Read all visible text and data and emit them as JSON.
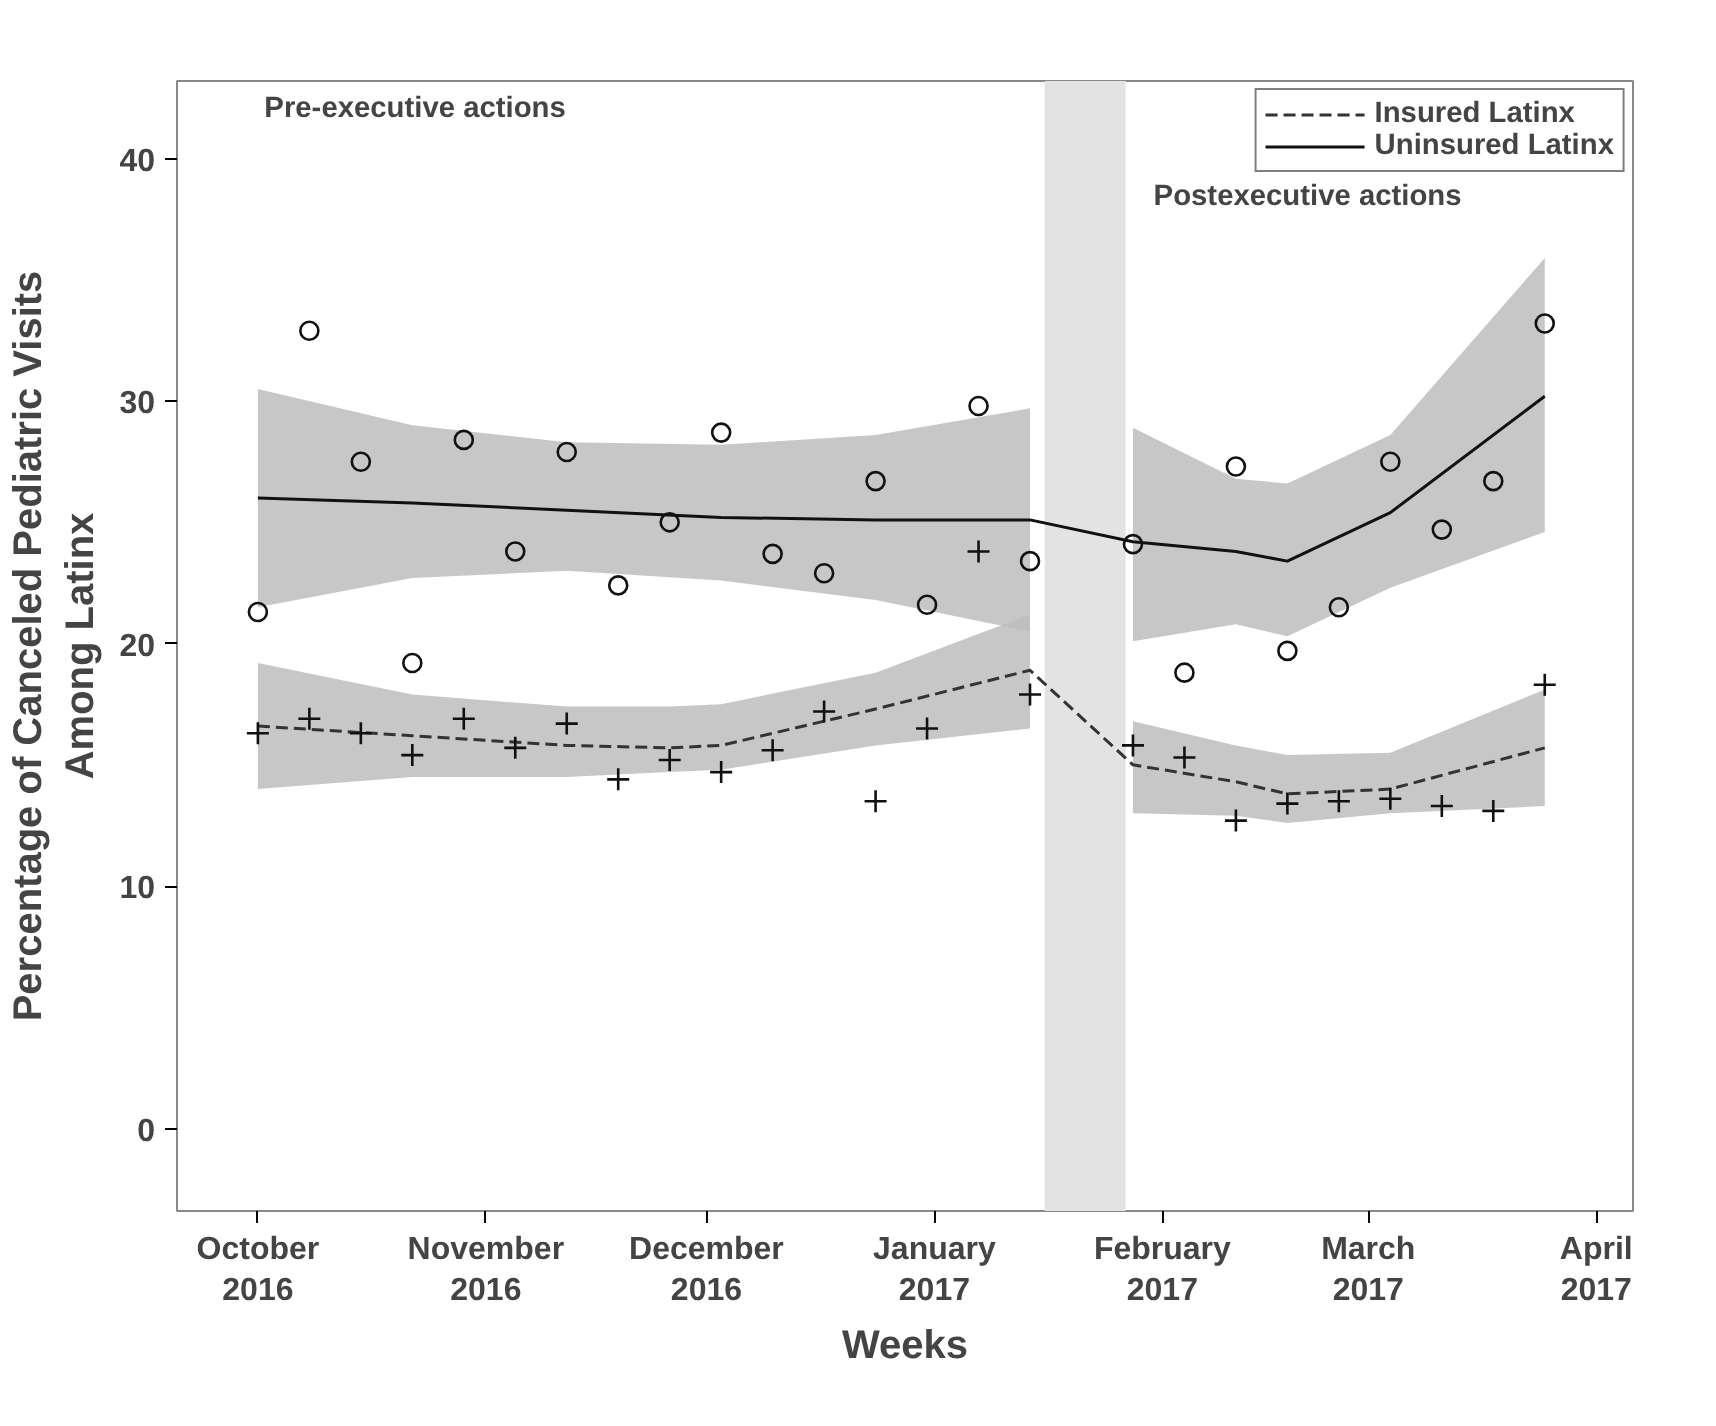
{
  "chart_data": {
    "type": "scatter",
    "xlabel": "Weeks",
    "ylabel": "Percentage of Canceled Pediatric Visits\nAmong Latinx",
    "annotations": [
      "Pre-executive actions",
      "Postexecutive actions"
    ],
    "xlim": [
      "2016-09-20",
      "2017-04-06"
    ],
    "ylim": [
      -3.4,
      43.2
    ],
    "xticks": [
      {
        "value": "2016-10-01",
        "label": "October\n2016"
      },
      {
        "value": "2016-11-01",
        "label": "November\n2016"
      },
      {
        "value": "2016-12-01",
        "label": "December\n2016"
      },
      {
        "value": "2017-01-01",
        "label": "January\n2017"
      },
      {
        "value": "2017-02-01",
        "label": "February\n2017"
      },
      {
        "value": "2017-03-01",
        "label": "March\n2017"
      },
      {
        "value": "2017-04-01",
        "label": "April\n2017"
      }
    ],
    "yticks": [
      0,
      10,
      20,
      30,
      40
    ],
    "grid": false,
    "legend": "top right",
    "bands": [
      {
        "axis": "x",
        "from": "2017-01-16",
        "to": "2017-01-27",
        "label": null,
        "color": "#e3e3e3"
      }
    ],
    "series": [
      {
        "type": "line",
        "name": "Insured Latinx",
        "color": "#333333",
        "line_style": "dashed",
        "marker": "none",
        "x": [
          "2016-10-01",
          "2016-10-22",
          "2016-11-12",
          "2016-11-26",
          "2016-12-03",
          "2016-12-24",
          "2017-01-14",
          "2017-01-28",
          "2017-02-11",
          "2017-02-18",
          "2017-03-04",
          "2017-03-25"
        ],
        "values": [
          16.6,
          16.2,
          15.8,
          15.7,
          15.8,
          17.3,
          18.9,
          15.0,
          14.3,
          13.8,
          14.0,
          15.7
        ],
        "lower": [
          14.0,
          14.5,
          14.5,
          14.7,
          14.8,
          15.8,
          16.5,
          13.0,
          12.9,
          12.6,
          13.0,
          13.3
        ],
        "upper": [
          19.2,
          17.9,
          17.4,
          17.4,
          17.5,
          18.8,
          21.2,
          16.8,
          15.8,
          15.4,
          15.5,
          18.1
        ]
      },
      {
        "type": "line",
        "name": "Uninsured Latinx",
        "color": "#111111",
        "line_style": "solid",
        "marker": "none",
        "x": [
          "2016-10-01",
          "2016-10-22",
          "2016-11-12",
          "2016-12-03",
          "2016-12-24",
          "2017-01-14",
          "2017-01-28",
          "2017-02-11",
          "2017-02-18",
          "2017-03-04",
          "2017-03-25"
        ],
        "values": [
          26.0,
          25.8,
          25.5,
          25.2,
          25.1,
          25.1,
          24.2,
          23.8,
          23.4,
          25.4,
          30.2
        ],
        "lower": [
          21.5,
          22.7,
          23.0,
          22.6,
          21.8,
          20.5,
          20.1,
          20.8,
          20.3,
          22.3,
          24.6
        ],
        "upper": [
          30.5,
          29.0,
          28.3,
          28.2,
          28.6,
          29.7,
          28.9,
          26.8,
          26.6,
          28.6,
          35.9
        ]
      },
      {
        "type": "scatter",
        "color": "#111111",
        "marker": "cross",
        "x": [
          "2016-10-01",
          "2016-10-08",
          "2016-10-15",
          "2016-10-22",
          "2016-10-29",
          "2016-11-05",
          "2016-11-12",
          "2016-11-19",
          "2016-11-26",
          "2016-12-03",
          "2016-12-10",
          "2016-12-17",
          "2016-12-24",
          "2016-12-31",
          "2017-01-07",
          "2017-01-14",
          "2017-01-28",
          "2017-02-04",
          "2017-02-11",
          "2017-02-18",
          "2017-02-25",
          "2017-03-04",
          "2017-03-11",
          "2017-03-18",
          "2017-03-25"
        ],
        "values": [
          16.3,
          16.9,
          16.3,
          15.4,
          16.9,
          15.7,
          16.7,
          14.4,
          15.2,
          14.7,
          15.6,
          17.2,
          13.5,
          16.5,
          23.8,
          17.9,
          15.8,
          15.3,
          12.7,
          13.4,
          13.5,
          13.6,
          13.3,
          13.1,
          18.3
        ]
      },
      {
        "type": "scatter",
        "color": "#111111",
        "marker": "circle",
        "x": [
          "2016-10-01",
          "2016-10-08",
          "2016-10-15",
          "2016-10-22",
          "2016-10-29",
          "2016-11-05",
          "2016-11-12",
          "2016-11-19",
          "2016-11-26",
          "2016-12-03",
          "2016-12-10",
          "2016-12-17",
          "2016-12-24",
          "2016-12-31",
          "2017-01-07",
          "2017-01-14",
          "2017-01-28",
          "2017-02-04",
          "2017-02-11",
          "2017-02-18",
          "2017-02-25",
          "2017-03-04",
          "2017-03-11",
          "2017-03-18",
          "2017-03-25"
        ],
        "values": [
          21.3,
          32.9,
          27.5,
          19.2,
          28.4,
          23.8,
          27.9,
          22.4,
          25.0,
          28.7,
          23.7,
          22.9,
          26.7,
          21.6,
          29.8,
          23.4,
          24.1,
          18.8,
          27.3,
          19.7,
          21.5,
          27.5,
          24.7,
          26.7,
          33.2
        ]
      }
    ]
  }
}
